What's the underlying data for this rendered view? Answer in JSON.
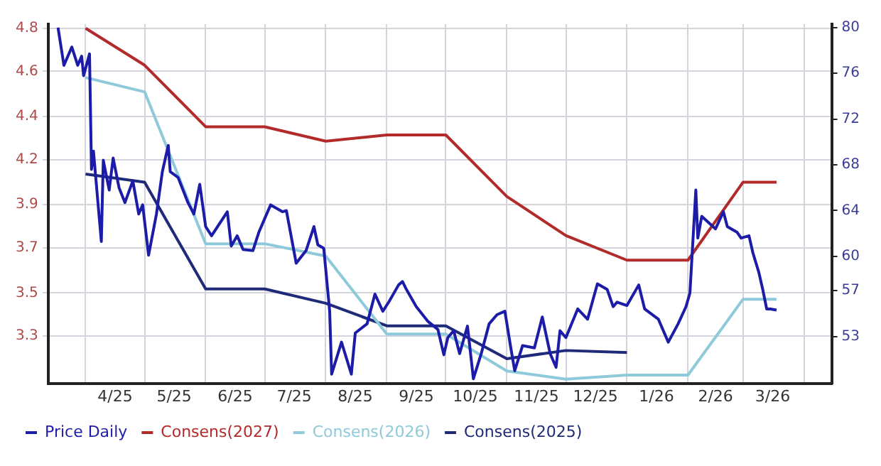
{
  "chart_data": {
    "type": "line",
    "xlim": [
      "2025-03-13",
      "2026-04-15"
    ],
    "xticks": [
      {
        "value": "2025-04-01",
        "label": null
      },
      {
        "value": "2025-04-16",
        "label": "4/25"
      },
      {
        "value": "2025-05-01",
        "label": null
      },
      {
        "value": "2025-05-16",
        "label": "5/25"
      },
      {
        "value": "2025-06-01",
        "label": null
      },
      {
        "value": "2025-06-16",
        "label": "6/25"
      },
      {
        "value": "2025-07-01",
        "label": null
      },
      {
        "value": "2025-07-16",
        "label": "7/25"
      },
      {
        "value": "2025-08-01",
        "label": null
      },
      {
        "value": "2025-08-16",
        "label": "8/25"
      },
      {
        "value": "2025-09-01",
        "label": null
      },
      {
        "value": "2025-09-16",
        "label": "9/25"
      },
      {
        "value": "2025-10-01",
        "label": null
      },
      {
        "value": "2025-10-16",
        "label": "10/25"
      },
      {
        "value": "2025-11-01",
        "label": null
      },
      {
        "value": "2025-11-16",
        "label": "11/25"
      },
      {
        "value": "2025-12-01",
        "label": null
      },
      {
        "value": "2025-12-16",
        "label": "12/25"
      },
      {
        "value": "2026-01-01",
        "label": null
      },
      {
        "value": "2026-01-16",
        "label": "1/26"
      },
      {
        "value": "2026-02-01",
        "label": null
      },
      {
        "value": "2026-02-15",
        "label": "2/26"
      },
      {
        "value": "2026-03-01",
        "label": null
      },
      {
        "value": "2026-03-16",
        "label": "3/26"
      },
      {
        "value": "2026-04-01",
        "label": null
      }
    ],
    "ylim": [
      3.07,
      4.82
    ],
    "yticks": [
      3.3,
      {
        "value": 3.51,
        "label": "3.5"
      },
      {
        "value": 3.73,
        "label": "3.7"
      },
      {
        "value": 3.94,
        "label": "3.9"
      },
      {
        "value": 4.16,
        "label": "4.2"
      },
      {
        "value": 4.37,
        "label": "4.4"
      },
      {
        "value": 4.59,
        "label": "4.6"
      },
      4.8
    ],
    "y2lim": [
      48.9,
      80.3
    ],
    "y2ticks": [
      53,
      57,
      60,
      64,
      68,
      72,
      76,
      80
    ],
    "grid": true,
    "legend": "bottom left",
    "marker": "none",
    "series": [
      {
        "name": "Price Daily",
        "color": "#1c1ca8",
        "axis": "y2",
        "x": [
          "2025-03-18",
          "2025-03-21",
          "2025-03-25",
          "2025-03-28",
          "2025-03-30",
          "2025-03-31",
          "2025-04-03",
          "2025-04-04",
          "2025-04-05",
          "2025-04-09",
          "2025-04-10",
          "2025-04-13",
          "2025-04-15",
          "2025-04-18",
          "2025-04-21",
          "2025-04-25",
          "2025-04-28",
          "2025-04-30",
          "2025-05-03",
          "2025-05-07",
          "2025-05-10",
          "2025-05-13",
          "2025-05-14",
          "2025-05-18",
          "2025-05-23",
          "2025-05-26",
          "2025-05-29",
          "2025-06-01",
          "2025-06-04",
          "2025-06-12",
          "2025-06-14",
          "2025-06-17",
          "2025-06-20",
          "2025-06-25",
          "2025-06-28",
          "2025-07-04",
          "2025-07-10",
          "2025-07-12",
          "2025-07-17",
          "2025-07-22",
          "2025-07-26",
          "2025-07-28",
          "2025-07-31",
          "2025-08-03",
          "2025-08-04",
          "2025-08-09",
          "2025-08-14",
          "2025-08-16",
          "2025-08-22",
          "2025-08-26",
          "2025-08-30",
          "2025-09-02",
          "2025-09-07",
          "2025-09-09",
          "2025-09-11",
          "2025-09-16",
          "2025-09-22",
          "2025-09-27",
          "2025-09-30",
          "2025-10-02",
          "2025-10-05",
          "2025-10-08",
          "2025-10-12",
          "2025-10-15",
          "2025-10-19",
          "2025-10-23",
          "2025-10-27",
          "2025-10-31",
          "2025-11-03",
          "2025-11-05",
          "2025-11-09",
          "2025-11-15",
          "2025-11-19",
          "2025-11-23",
          "2025-11-26",
          "2025-11-28",
          "2025-12-01",
          "2025-12-07",
          "2025-12-12",
          "2025-12-17",
          "2025-12-22",
          "2025-12-25",
          "2025-12-27",
          "2026-01-01",
          "2026-01-07",
          "2026-01-10",
          "2026-01-17",
          "2026-01-22",
          "2026-01-27",
          "2026-01-31",
          "2026-02-02",
          "2026-02-05",
          "2026-02-06",
          "2026-02-08",
          "2026-02-15",
          "2026-02-19",
          "2026-02-21",
          "2026-02-26",
          "2026-02-28",
          "2026-03-04",
          "2026-03-06",
          "2026-03-09",
          "2026-03-11",
          "2026-03-13",
          "2026-03-15",
          "2026-03-18"
        ],
        "values": [
          80.0,
          76.7,
          78.3,
          76.7,
          77.5,
          75.8,
          77.7,
          67.6,
          69.2,
          61.3,
          68.4,
          65.8,
          68.6,
          66.0,
          64.7,
          66.6,
          63.7,
          64.5,
          60.1,
          63.7,
          67.4,
          69.7,
          67.4,
          66.9,
          64.7,
          63.7,
          66.3,
          62.6,
          61.8,
          63.9,
          60.9,
          61.8,
          60.6,
          60.5,
          62.1,
          64.5,
          63.9,
          64.0,
          59.4,
          60.5,
          62.6,
          61.0,
          60.7,
          55.2,
          49.7,
          52.5,
          49.7,
          53.3,
          54.1,
          56.7,
          55.2,
          56.0,
          57.5,
          57.8,
          57.1,
          55.6,
          54.3,
          53.6,
          51.4,
          52.9,
          53.5,
          51.5,
          53.9,
          49.3,
          51.5,
          54.1,
          54.9,
          55.2,
          52.0,
          50.0,
          52.2,
          52.0,
          54.7,
          51.5,
          50.3,
          53.5,
          52.9,
          55.4,
          54.5,
          57.6,
          57.1,
          55.6,
          56.0,
          55.7,
          57.5,
          55.4,
          54.5,
          52.5,
          54.1,
          55.6,
          56.8,
          65.8,
          61.6,
          63.5,
          62.4,
          63.9,
          62.6,
          62.1,
          61.6,
          61.8,
          60.3,
          58.6,
          57.1,
          55.4,
          55.4,
          55.3
        ]
      },
      {
        "name": "Consens(2027)",
        "color": "#b22a2a",
        "x": [
          "2025-04-01",
          "2025-05-01",
          "2025-06-01",
          "2025-07-01",
          "2025-08-01",
          "2025-09-01",
          "2025-10-01",
          "2025-11-01",
          "2025-12-01",
          "2026-01-01",
          "2026-02-01",
          "2026-03-01",
          "2026-03-18"
        ],
        "values": [
          4.8,
          4.62,
          4.32,
          4.32,
          4.25,
          4.28,
          4.28,
          3.98,
          3.79,
          3.67,
          3.67,
          4.05,
          4.05
        ]
      },
      {
        "name": "Consens(2026)",
        "color": "#8fcadb",
        "x": [
          "2025-04-01",
          "2025-05-01",
          "2025-06-01",
          "2025-07-01",
          "2025-08-01",
          "2025-09-01",
          "2025-10-01",
          "2025-11-01",
          "2025-12-01",
          "2026-01-01",
          "2026-02-01",
          "2026-03-01",
          "2026-03-18"
        ],
        "values": [
          4.56,
          4.49,
          3.75,
          3.75,
          3.69,
          3.31,
          3.31,
          3.13,
          3.09,
          3.11,
          3.11,
          3.48,
          3.48
        ]
      },
      {
        "name": "Consens(2025)",
        "color": "#1f2a78",
        "x": [
          "2025-04-01",
          "2025-05-01",
          "2025-06-01",
          "2025-07-01",
          "2025-08-01",
          "2025-09-01",
          "2025-10-01",
          "2025-11-01",
          "2025-12-01",
          "2026-01-01"
        ],
        "values": [
          4.09,
          4.05,
          3.53,
          3.53,
          3.46,
          3.35,
          3.35,
          3.19,
          3.23,
          3.22
        ]
      }
    ]
  }
}
